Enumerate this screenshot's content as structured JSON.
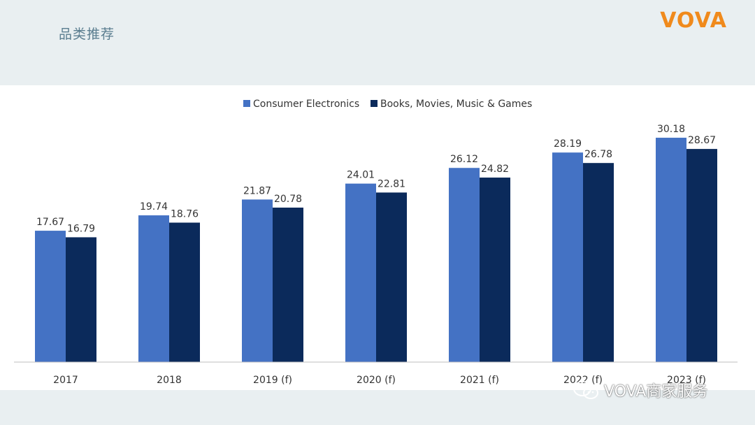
{
  "header": {
    "title": "品类推荐",
    "brand": "VOVA"
  },
  "watermark": {
    "text": "VOVA商家服务",
    "icon": "wechat-icon"
  },
  "chart_data": {
    "type": "bar",
    "title": "",
    "xlabel": "",
    "ylabel": "",
    "categories": [
      "2017",
      "2018",
      "2019 (f)",
      "2020 (f)",
      "2021 (f)",
      "2022 (f)",
      "2023 (f)"
    ],
    "series": [
      {
        "name": "Consumer Electronics",
        "color": "#4472c4",
        "values": [
          17.67,
          19.74,
          21.87,
          24.01,
          26.12,
          28.19,
          30.18
        ]
      },
      {
        "name": "Books, Movies, Music & Games",
        "color": "#0b2a5b",
        "values": [
          16.79,
          18.76,
          20.78,
          22.81,
          24.82,
          26.78,
          28.67
        ]
      }
    ],
    "ylim": [
      0,
      35
    ],
    "legend": "top",
    "grid": false
  }
}
